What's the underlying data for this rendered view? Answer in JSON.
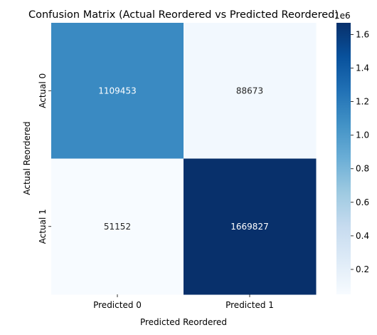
{
  "chart_data": {
    "type": "heatmap",
    "title": "Confusion Matrix (Actual Reordered vs Predicted Reordered)",
    "xlabel": "Predicted Reordered",
    "ylabel": "Actual Reordered",
    "x_categories": [
      "Predicted 0",
      "Predicted 1"
    ],
    "y_categories": [
      "Actual 0",
      "Actual 1"
    ],
    "values": [
      [
        1109453,
        88673
      ],
      [
        51152,
        1669827
      ]
    ],
    "cell_labels": [
      [
        "1109453",
        "88673"
      ],
      [
        "51152",
        "1669827"
      ]
    ],
    "colormap": "Blues",
    "colorbar": {
      "range": [
        51152,
        1669827
      ],
      "ticks": [
        0.2,
        0.4,
        0.6,
        0.8,
        1.0,
        1.2,
        1.4,
        1.6
      ],
      "tick_labels": [
        "0.2",
        "0.4",
        "0.6",
        "0.8",
        "1.0",
        "1.2",
        "1.4",
        "1.6"
      ],
      "scale_label": "1e6",
      "scale_factor": 1000000
    }
  }
}
